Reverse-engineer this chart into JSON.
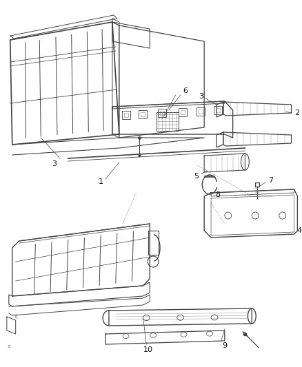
{
  "bg_color": "#ffffff",
  "line_color": "#444444",
  "light_color": "#888888",
  "figsize": [
    4.38,
    5.33
  ],
  "dpi": 100
}
